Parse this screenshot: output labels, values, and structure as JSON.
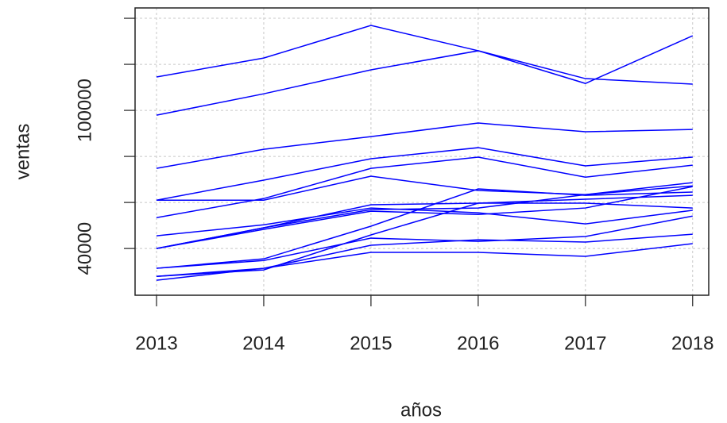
{
  "chart_data": {
    "type": "line",
    "x_label": "años",
    "y_label": "ventas",
    "x": [
      2013,
      2014,
      2015,
      2016,
      2017,
      2018
    ],
    "xlim": [
      2012.8,
      2018.15
    ],
    "xticks": [
      2013,
      2014,
      2015,
      2016,
      2017,
      2018
    ],
    "ylim": [
      19700,
      144500
    ],
    "yticks": [
      40000,
      60000,
      80000,
      100000,
      120000,
      140000
    ],
    "ylabels": [
      40000,
      100000
    ],
    "grid": true,
    "color": "#0000ff",
    "series": [
      {
        "values": [
          114500,
          122750,
          136900,
          125900,
          111700,
          132400
        ]
      },
      {
        "values": [
          97900,
          107200,
          117600,
          125900,
          113800,
          111400
        ]
      },
      {
        "values": [
          74800,
          83100,
          88600,
          94500,
          90700,
          91700
        ]
      },
      {
        "values": [
          61000,
          69700,
          79000,
          83800,
          75900,
          79700
        ]
      },
      {
        "values": [
          61000,
          61000,
          71400,
          65200,
          63400,
          68600
        ]
      },
      {
        "values": [
          53400,
          61700,
          74800,
          79700,
          71000,
          76200
        ]
      },
      {
        "values": [
          45500,
          50300,
          57600,
          55500,
          50700,
          56600
        ]
      },
      {
        "values": [
          40000,
          49000,
          56900,
          57600,
          63400,
          67200
        ]
      },
      {
        "values": [
          40000,
          48300,
          56200,
          54800,
          57600,
          66900
        ]
      },
      {
        "values": [
          31400,
          35500,
          49700,
          65900,
          63100,
          64500
        ]
      },
      {
        "values": [
          31400,
          34800,
          44500,
          43100,
          45200,
          54100
        ]
      },
      {
        "values": [
          27900,
          31400,
          41400,
          43800,
          42800,
          46200
        ]
      },
      {
        "values": [
          26200,
          31400,
          38300,
          38300,
          36600,
          42100
        ]
      },
      {
        "values": [
          27900,
          30700,
          45900,
          59700,
          59700,
          57600
        ]
      },
      {
        "values": [
          40000,
          49000,
          59000,
          59700,
          61400,
          63100
        ]
      }
    ]
  }
}
